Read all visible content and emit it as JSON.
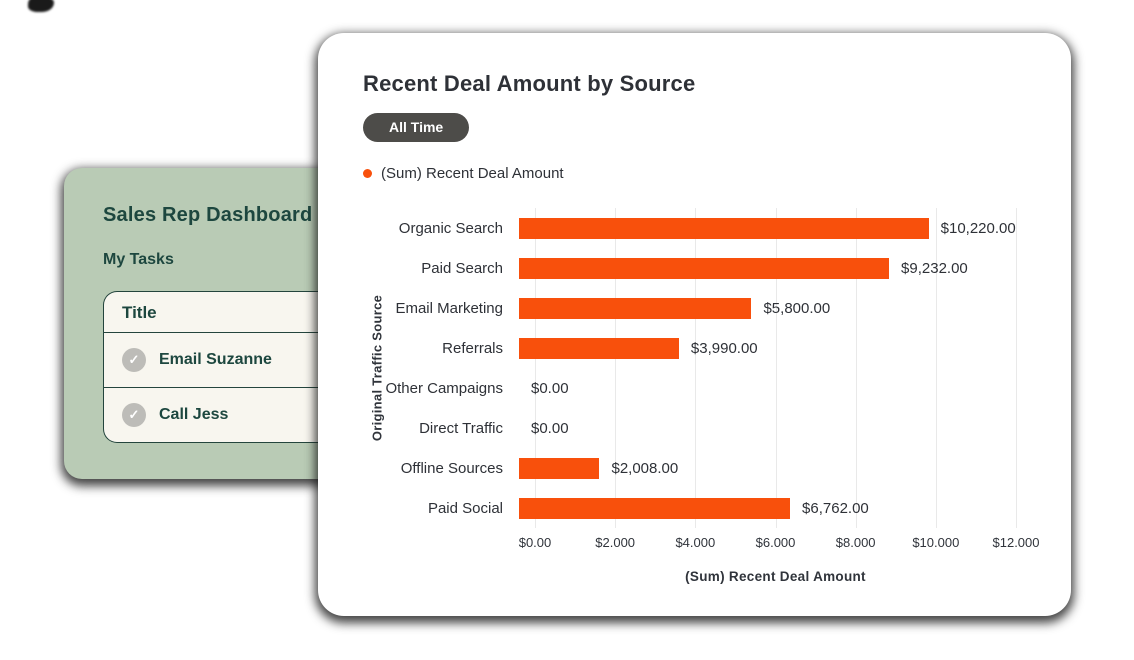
{
  "tasks_card": {
    "title": "Sales Rep Dashboard",
    "section_title": "My Tasks",
    "table": {
      "header": "Title",
      "rows": [
        "Email Suzanne",
        "Call Jess"
      ]
    },
    "colors": {
      "card_bg": "#b9cbb5",
      "text": "#1d473f",
      "table_bg": "#f8f6ef",
      "border": "#24453d",
      "check_circle": "#bdbcb8"
    }
  },
  "chart_card": {
    "title": "Recent Deal Amount by Source",
    "filter_pill_label": "All Time",
    "legend": {
      "label": "(Sum) Recent Deal Amount",
      "color": "#f8500c"
    }
  },
  "chart_data": {
    "type": "bar",
    "orientation": "horizontal",
    "title": "Recent Deal Amount by Source",
    "categories": [
      "Organic Search",
      "Paid Search",
      "Email Marketing",
      "Referrals",
      "Other Campaigns",
      "Direct Traffic",
      "Offline Sources",
      "Paid Social"
    ],
    "values": [
      10220,
      9232,
      5800,
      3990,
      0,
      0,
      2008,
      6762
    ],
    "value_labels": [
      "$10,220.00",
      "$9,232.00",
      "$5,800.00",
      "$3,990.00",
      "$0.00",
      "$0.00",
      "$2,008.00",
      "$6,762.00"
    ],
    "xlabel": "(Sum) Recent Deal Amount",
    "ylabel": "Original Traffic Source",
    "xlim": [
      0,
      12000
    ],
    "x_ticks": [
      0,
      2000,
      4000,
      6000,
      8000,
      10000,
      12000
    ],
    "x_tick_labels": [
      "$0.00",
      "$2.000",
      "$4.000",
      "$6.000",
      "$8.000",
      "$10.000",
      "$12.000"
    ],
    "grid": "vertical-only",
    "legend_position": "top-left",
    "bar_color": "#f8500c",
    "gridline_color": "#e9e9e9"
  }
}
